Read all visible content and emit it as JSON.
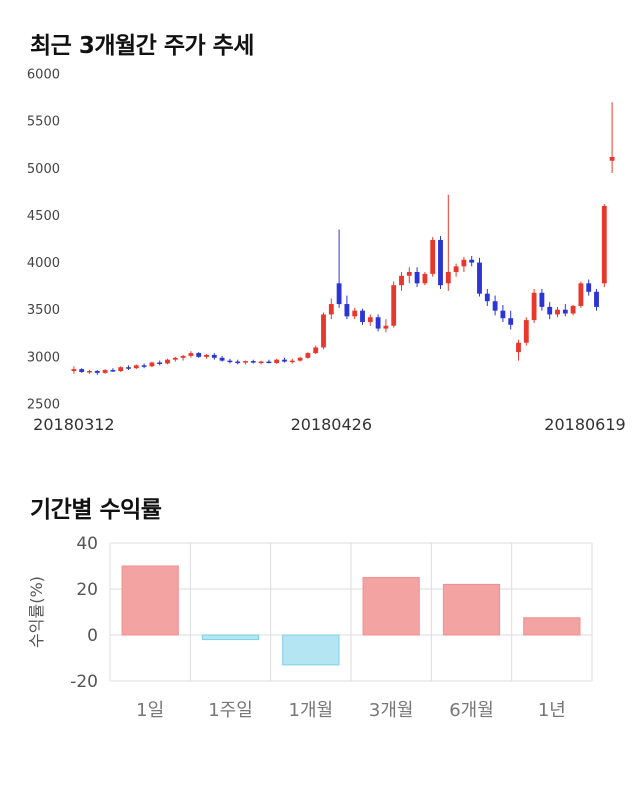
{
  "page": {
    "background": "#ffffff"
  },
  "sections": {
    "price": {
      "title": "최근 3개월간 주가 추세"
    },
    "returns": {
      "title": "기간별 수익률"
    }
  },
  "chart_data": [
    {
      "type": "candlestick",
      "title": "최근 3개월간 주가 추세",
      "ylim": [
        2500,
        6000
      ],
      "yticks": [
        6000,
        5500,
        5000,
        4500,
        4000,
        3500,
        3000,
        2500
      ],
      "x_tick_labels": [
        "20180312",
        "20180426",
        "20180619"
      ],
      "x_tick_indices": [
        0,
        33,
        69
      ],
      "up_color": "#e8382e",
      "down_color": "#2b35d4",
      "tick_color": "#444444",
      "xlabel_color": "#333333",
      "grid": "off",
      "candles_ohlc": [
        [
          2850,
          2900,
          2820,
          2870
        ],
        [
          2870,
          2880,
          2830,
          2840
        ],
        [
          2840,
          2860,
          2820,
          2850
        ],
        [
          2850,
          2860,
          2810,
          2830
        ],
        [
          2830,
          2870,
          2820,
          2860
        ],
        [
          2860,
          2880,
          2840,
          2850
        ],
        [
          2850,
          2900,
          2840,
          2890
        ],
        [
          2890,
          2910,
          2860,
          2880
        ],
        [
          2880,
          2920,
          2870,
          2910
        ],
        [
          2910,
          2930,
          2880,
          2900
        ],
        [
          2900,
          2950,
          2890,
          2940
        ],
        [
          2940,
          2960,
          2910,
          2930
        ],
        [
          2930,
          2980,
          2920,
          2970
        ],
        [
          2970,
          3000,
          2950,
          2990
        ],
        [
          2990,
          3020,
          2960,
          3010
        ],
        [
          3010,
          3060,
          2990,
          3040
        ],
        [
          3040,
          3050,
          2990,
          3000
        ],
        [
          3000,
          3030,
          2980,
          3020
        ],
        [
          3020,
          3040,
          2970,
          2990
        ],
        [
          2990,
          3010,
          2950,
          2960
        ],
        [
          2960,
          2980,
          2930,
          2950
        ],
        [
          2950,
          2970,
          2920,
          2940
        ],
        [
          2940,
          2960,
          2920,
          2955
        ],
        [
          2955,
          2970,
          2930,
          2940
        ],
        [
          2940,
          2960,
          2920,
          2950
        ],
        [
          2950,
          2970,
          2930,
          2935
        ],
        [
          2935,
          2980,
          2925,
          2970
        ],
        [
          2970,
          2990,
          2940,
          2950
        ],
        [
          2950,
          2980,
          2930,
          2960
        ],
        [
          2960,
          3000,
          2950,
          2990
        ],
        [
          2990,
          3050,
          2980,
          3040
        ],
        [
          3040,
          3120,
          3030,
          3100
        ],
        [
          3100,
          3470,
          3080,
          3450
        ],
        [
          3450,
          3620,
          3400,
          3560
        ],
        [
          3780,
          4350,
          3520,
          3560
        ],
        [
          3560,
          3650,
          3400,
          3430
        ],
        [
          3430,
          3520,
          3400,
          3490
        ],
        [
          3490,
          3510,
          3340,
          3370
        ],
        [
          3370,
          3450,
          3330,
          3420
        ],
        [
          3420,
          3450,
          3270,
          3300
        ],
        [
          3300,
          3400,
          3260,
          3330
        ],
        [
          3330,
          3800,
          3310,
          3760
        ],
        [
          3760,
          3900,
          3700,
          3860
        ],
        [
          3860,
          3950,
          3780,
          3900
        ],
        [
          3900,
          3950,
          3740,
          3780
        ],
        [
          3780,
          3900,
          3760,
          3880
        ],
        [
          3880,
          4270,
          3850,
          4240
        ],
        [
          4240,
          4280,
          3720,
          3760
        ],
        [
          3780,
          4720,
          3700,
          3900
        ],
        [
          3900,
          3990,
          3850,
          3960
        ],
        [
          3960,
          4060,
          3900,
          4030
        ],
        [
          4030,
          4070,
          3960,
          4000
        ],
        [
          4000,
          4050,
          3640,
          3670
        ],
        [
          3670,
          3720,
          3540,
          3590
        ],
        [
          3590,
          3650,
          3440,
          3490
        ],
        [
          3490,
          3550,
          3370,
          3410
        ],
        [
          3410,
          3490,
          3290,
          3340
        ],
        [
          3050,
          3180,
          2960,
          3150
        ],
        [
          3150,
          3420,
          3120,
          3390
        ],
        [
          3390,
          3720,
          3360,
          3680
        ],
        [
          3680,
          3720,
          3490,
          3530
        ],
        [
          3530,
          3580,
          3400,
          3450
        ],
        [
          3450,
          3530,
          3420,
          3500
        ],
        [
          3500,
          3560,
          3430,
          3460
        ],
        [
          3460,
          3550,
          3440,
          3540
        ],
        [
          3540,
          3800,
          3520,
          3780
        ],
        [
          3780,
          3820,
          3650,
          3690
        ],
        [
          3690,
          3720,
          3490,
          3530
        ],
        [
          3780,
          4620,
          3740,
          4600
        ],
        [
          5080,
          5700,
          4950,
          5120
        ]
      ]
    },
    {
      "type": "bar",
      "title": "기간별 수익률",
      "categories": [
        "1일",
        "1주일",
        "1개월",
        "3개월",
        "6개월",
        "1년"
      ],
      "values": [
        30,
        -2,
        -13,
        25,
        22,
        7.5
      ],
      "ylabel": "수익률(%)",
      "ylim": [
        -20,
        40
      ],
      "yticks": [
        40,
        20,
        0,
        -20
      ],
      "grid": "on",
      "positive_color": "#f4a3a3",
      "positive_stroke": "#ef8f8f",
      "negative_color": "#b3e5f2",
      "negative_stroke": "#7fcfe4",
      "grid_color": "#dddddd",
      "tick_color": "#555555",
      "category_color": "#777777"
    }
  ]
}
